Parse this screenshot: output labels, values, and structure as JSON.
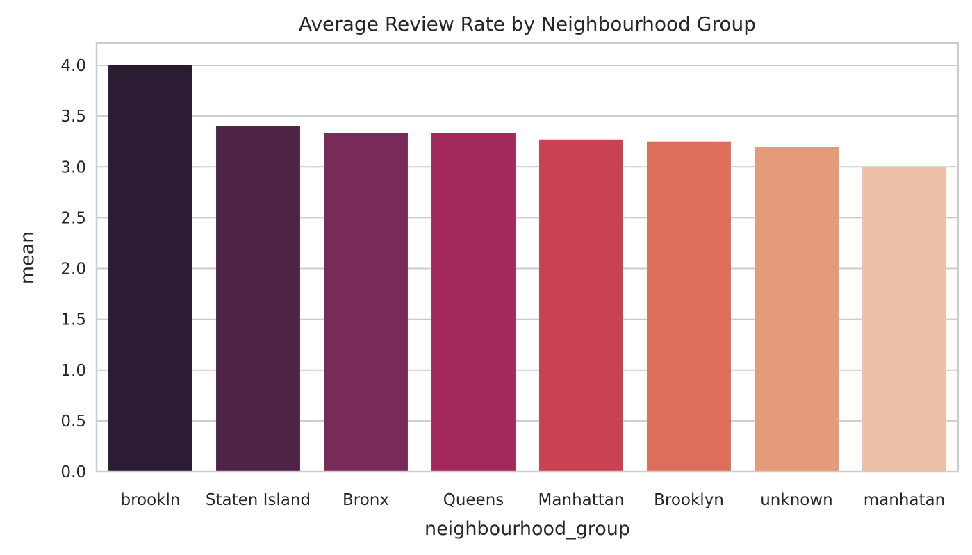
{
  "chart_data": {
    "type": "bar",
    "title": "Average Review Rate by Neighbourhood Group",
    "xlabel": "neighbourhood_group",
    "ylabel": "mean",
    "categories": [
      "brookln",
      "Staten Island",
      "Bronx",
      "Queens",
      "Manhattan",
      "Brooklyn",
      "unknown",
      "manhatan"
    ],
    "values": [
      4.0,
      3.4,
      3.33,
      3.33,
      3.27,
      3.25,
      3.2,
      3.0
    ],
    "colors": [
      "#2b1b33",
      "#4e2346",
      "#782b58",
      "#a12a5b",
      "#c84253",
      "#dc6e5b",
      "#e59a7a",
      "#ecc1a8"
    ],
    "ylim": [
      0,
      4.2
    ],
    "yticks": [
      "0.0",
      "0.5",
      "1.0",
      "1.5",
      "2.0",
      "2.5",
      "3.0",
      "3.5",
      "4.0"
    ],
    "grid": true,
    "legend": "none"
  }
}
